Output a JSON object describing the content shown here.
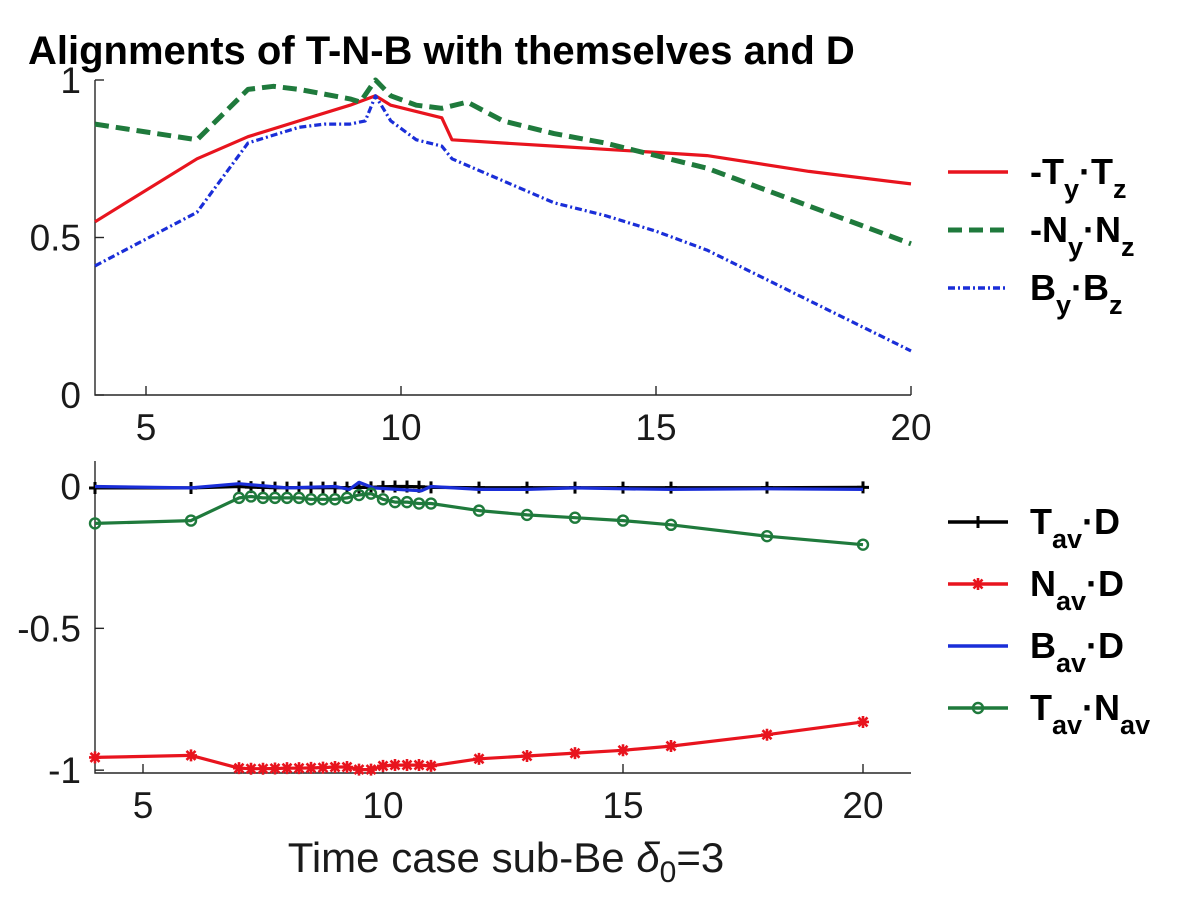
{
  "chart_data": [
    {
      "type": "line",
      "title": "Alignments of T-N-B with themselves and D",
      "xlabel": "",
      "ylabel": "",
      "xlim": [
        4,
        20
      ],
      "ylim": [
        0,
        1
      ],
      "xticks": [
        "5",
        "10",
        "15",
        "20"
      ],
      "yticks": [
        "0",
        "0.5",
        "1"
      ],
      "legend_position": "right",
      "series": [
        {
          "name": "-Ty·Tz",
          "legend": {
            "base": "-T",
            "sub1": "y",
            "dot": "·",
            "base2": "T",
            "sub2": "z"
          },
          "color": "#e8141e",
          "style": "solid",
          "x": [
            4,
            6,
            7,
            8,
            9,
            9.5,
            9.8,
            10.8,
            11,
            12,
            13,
            14,
            15,
            16,
            18,
            20
          ],
          "y": [
            0.55,
            0.75,
            0.82,
            0.87,
            0.92,
            0.95,
            0.92,
            0.88,
            0.81,
            0.8,
            0.79,
            0.78,
            0.77,
            0.76,
            0.71,
            0.67
          ]
        },
        {
          "name": "-Ny·Nz",
          "legend": {
            "base": "-N",
            "sub1": "y",
            "dot": "·",
            "base2": "N",
            "sub2": "z"
          },
          "color": "#1f7a3c",
          "style": "dashed",
          "x": [
            4,
            6,
            7,
            7.5,
            8,
            9,
            9.2,
            9.5,
            9.8,
            10.3,
            10.8,
            11.3,
            12,
            13,
            14,
            15,
            16,
            17,
            18,
            19,
            20
          ],
          "y": [
            0.86,
            0.81,
            0.97,
            0.98,
            0.97,
            0.94,
            0.93,
            1.0,
            0.95,
            0.92,
            0.91,
            0.93,
            0.87,
            0.83,
            0.8,
            0.76,
            0.72,
            0.66,
            0.6,
            0.54,
            0.48
          ]
        },
        {
          "name": "By·Bz",
          "legend": {
            "base": "B",
            "sub1": "y",
            "dot": "·",
            "base2": "B",
            "sub2": "z"
          },
          "color": "#1a2ed8",
          "style": "dashdot",
          "x": [
            4,
            6,
            7,
            8,
            8.5,
            9,
            9.3,
            9.5,
            9.8,
            10.3,
            10.8,
            11,
            12,
            13,
            14,
            15,
            16,
            17,
            18,
            19,
            20
          ],
          "y": [
            0.41,
            0.58,
            0.8,
            0.85,
            0.86,
            0.86,
            0.87,
            0.95,
            0.87,
            0.81,
            0.79,
            0.75,
            0.68,
            0.61,
            0.57,
            0.52,
            0.46,
            0.38,
            0.3,
            0.22,
            0.14
          ]
        }
      ]
    },
    {
      "type": "line",
      "title": "",
      "xlabel": "Time   case sub-Be δ0=3",
      "xlabel_parts": {
        "main": "Time   case sub-Be ",
        "greek": "δ",
        "sub": "0",
        "tail": "=3"
      },
      "ylabel": "",
      "xlim": [
        4,
        21
      ],
      "ylim": [
        -1.01,
        0.09
      ],
      "xticks": [
        "5",
        "10",
        "15",
        "20"
      ],
      "yticks": [
        "0",
        "-0.5",
        "-1"
      ],
      "legend_position": "right",
      "series": [
        {
          "name": "Tav·D",
          "legend": {
            "base": "T",
            "sub1": "av",
            "dot": "·",
            "base2": "D",
            "sub2": ""
          },
          "color": "#000000",
          "marker": "plus",
          "x": [
            4,
            6,
            7,
            7.25,
            7.5,
            7.75,
            8,
            8.25,
            8.5,
            8.75,
            9,
            9.25,
            9.5,
            9.75,
            10,
            10.25,
            10.5,
            10.75,
            11,
            12,
            13,
            14,
            15,
            16,
            18,
            20
          ],
          "y": [
            -0.005,
            -0.005,
            0.0,
            -0.002,
            -0.003,
            -0.004,
            -0.004,
            -0.004,
            -0.004,
            -0.004,
            -0.004,
            -0.004,
            -0.003,
            -0.003,
            -0.001,
            0.0,
            0.0,
            -0.001,
            -0.003,
            -0.004,
            -0.004,
            -0.004,
            -0.004,
            -0.004,
            -0.004,
            -0.003
          ]
        },
        {
          "name": "Nav·D",
          "legend": {
            "base": "N",
            "sub1": "av",
            "dot": "·",
            "base2": "D",
            "sub2": ""
          },
          "color": "#e8141e",
          "marker": "star",
          "x": [
            4,
            6,
            7,
            7.25,
            7.5,
            7.75,
            8,
            8.25,
            8.5,
            8.75,
            9,
            9.25,
            9.5,
            9.75,
            10,
            10.25,
            10.5,
            10.75,
            11,
            12,
            13,
            14,
            15,
            16,
            18,
            20
          ],
          "y": [
            -0.955,
            -0.948,
            -0.993,
            -0.995,
            -0.995,
            -0.994,
            -0.993,
            -0.993,
            -0.992,
            -0.991,
            -0.989,
            -0.989,
            -0.998,
            -0.998,
            -0.985,
            -0.982,
            -0.982,
            -0.982,
            -0.985,
            -0.96,
            -0.95,
            -0.94,
            -0.93,
            -0.915,
            -0.875,
            -0.83
          ]
        },
        {
          "name": "Bav·D",
          "legend": {
            "base": "B",
            "sub1": "av",
            "dot": "·",
            "base2": "D",
            "sub2": ""
          },
          "color": "#1a2ed8",
          "marker": "none",
          "x": [
            4,
            6,
            7,
            8,
            9,
            9.3,
            9.5,
            9.8,
            10.3,
            10.8,
            11,
            12,
            13,
            14,
            15,
            16,
            18,
            20
          ],
          "y": [
            0.0,
            -0.005,
            0.01,
            -0.005,
            0.0,
            -0.01,
            0.015,
            -0.005,
            -0.01,
            -0.015,
            0.0,
            -0.01,
            -0.01,
            -0.005,
            -0.008,
            -0.01,
            -0.008,
            -0.01
          ]
        },
        {
          "name": "Tav·Nav",
          "legend": {
            "base": "T",
            "sub1": "av",
            "dot": "·",
            "base2": "N",
            "sub2": "av"
          },
          "color": "#1f7a3c",
          "marker": "circle",
          "x": [
            4,
            6,
            7,
            7.25,
            7.5,
            7.75,
            8,
            8.25,
            8.5,
            8.75,
            9,
            9.25,
            9.5,
            9.75,
            10,
            10.25,
            10.5,
            10.75,
            11,
            12,
            13,
            14,
            15,
            16,
            18,
            20
          ],
          "y": [
            -0.13,
            -0.12,
            -0.04,
            -0.035,
            -0.04,
            -0.04,
            -0.04,
            -0.04,
            -0.045,
            -0.045,
            -0.045,
            -0.04,
            -0.03,
            -0.025,
            -0.045,
            -0.055,
            -0.055,
            -0.06,
            -0.06,
            -0.085,
            -0.1,
            -0.11,
            -0.12,
            -0.135,
            -0.175,
            -0.205
          ]
        }
      ]
    }
  ]
}
